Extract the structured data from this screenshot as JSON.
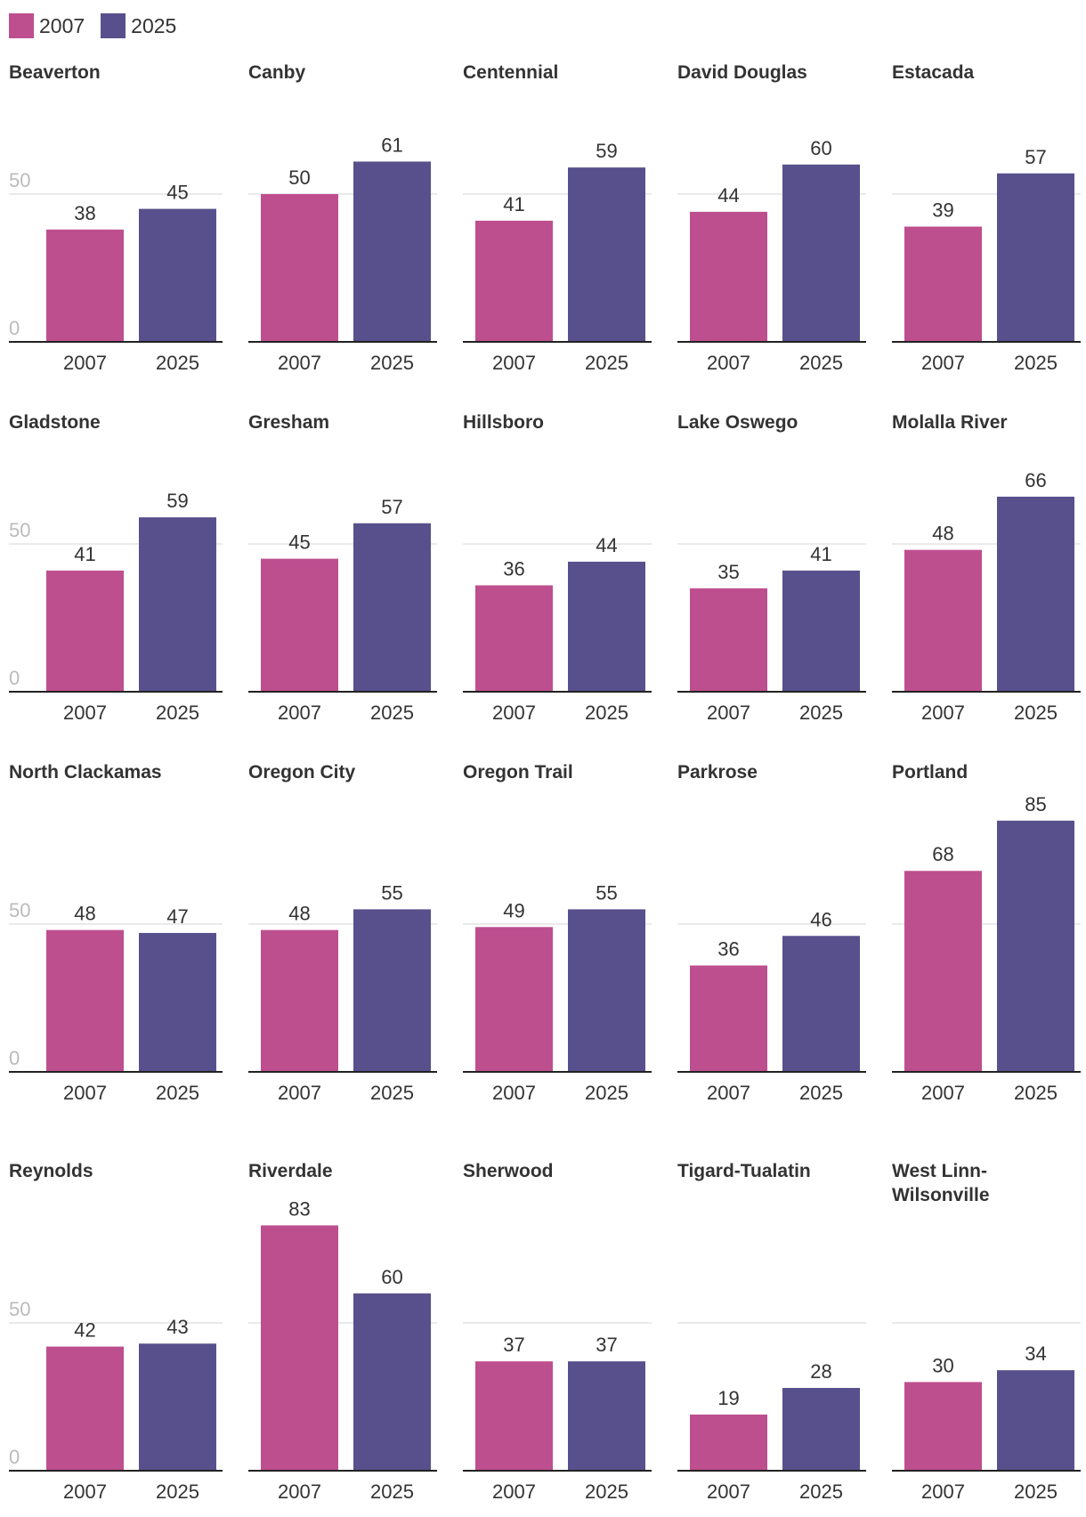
{
  "legend": [
    {
      "label": "2007",
      "color": "#be4f8f"
    },
    {
      "label": "2025",
      "color": "#58508c"
    }
  ],
  "chart_data": {
    "type": "bar",
    "layout": "small-multiples",
    "categories": [
      "2007",
      "2025"
    ],
    "ylim": [
      0,
      85
    ],
    "yticks": [
      "0",
      "50"
    ],
    "grid": true,
    "legend_position": "top-left",
    "panels": [
      {
        "title": [
          "Beaverton"
        ],
        "values": [
          38,
          45
        ]
      },
      {
        "title": [
          "Canby"
        ],
        "values": [
          50,
          61
        ]
      },
      {
        "title": [
          "Centennial"
        ],
        "values": [
          41,
          59
        ]
      },
      {
        "title": [
          "David Douglas"
        ],
        "values": [
          44,
          60
        ]
      },
      {
        "title": [
          "Estacada"
        ],
        "values": [
          39,
          57
        ]
      },
      {
        "title": [
          "Gladstone"
        ],
        "values": [
          41,
          59
        ]
      },
      {
        "title": [
          "Gresham"
        ],
        "values": [
          45,
          57
        ]
      },
      {
        "title": [
          "Hillsboro"
        ],
        "values": [
          36,
          44
        ]
      },
      {
        "title": [
          "Lake Oswego"
        ],
        "values": [
          35,
          41
        ]
      },
      {
        "title": [
          "Molalla River"
        ],
        "values": [
          48,
          66
        ]
      },
      {
        "title": [
          "North Clackamas"
        ],
        "values": [
          48,
          47
        ]
      },
      {
        "title": [
          "Oregon City"
        ],
        "values": [
          48,
          55
        ]
      },
      {
        "title": [
          "Oregon Trail"
        ],
        "values": [
          49,
          55
        ]
      },
      {
        "title": [
          "Parkrose"
        ],
        "values": [
          36,
          46
        ]
      },
      {
        "title": [
          "Portland"
        ],
        "values": [
          68,
          85
        ]
      },
      {
        "title": [
          "Reynolds"
        ],
        "values": [
          42,
          43
        ]
      },
      {
        "title": [
          "Riverdale"
        ],
        "values": [
          83,
          60
        ]
      },
      {
        "title": [
          "Sherwood"
        ],
        "values": [
          37,
          37
        ]
      },
      {
        "title": [
          "Tigard-Tualatin"
        ],
        "values": [
          19,
          28
        ]
      },
      {
        "title": [
          "West Linn-",
          "Wilsonville"
        ],
        "values": [
          30,
          34
        ]
      }
    ]
  }
}
